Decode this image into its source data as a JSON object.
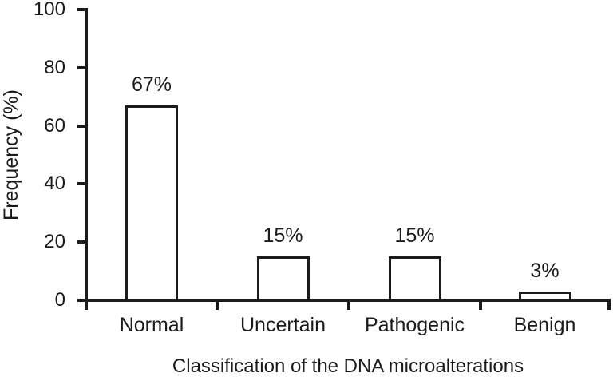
{
  "figure": {
    "background": "#ffffff",
    "ink_color": "#1b1b1b"
  },
  "chart_data": {
    "type": "bar",
    "title": "",
    "categories": [
      "Normal",
      "Uncertain",
      "Pathogenic",
      "Benign"
    ],
    "values": [
      67,
      15,
      15,
      3
    ],
    "value_labels": [
      "67%",
      "15%",
      "15%",
      "3%"
    ],
    "xlabel": "Classification of the DNA microalterations",
    "ylabel": "Frequency (%)",
    "ylim": [
      0,
      100
    ],
    "yticks": [
      0,
      20,
      40,
      60,
      80,
      100
    ],
    "grid": false,
    "legend": "none",
    "bar_fill": "#ffffff",
    "bar_border": "#1b1b1b"
  }
}
